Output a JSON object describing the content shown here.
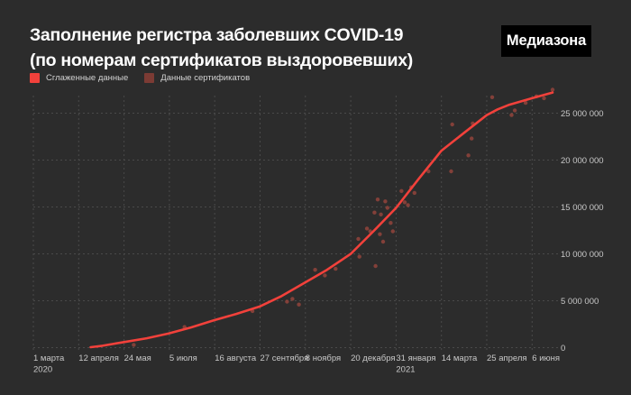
{
  "header": {
    "title_line1": "Заполнение регистра заболевших COVID-19",
    "title_line2": "(по номерам сертификатов выздоровевших)",
    "logo": "Медиазона"
  },
  "legend": [
    {
      "label": "Сглаженные данные",
      "color": "#f2413b"
    },
    {
      "label": "Данные сертификатов",
      "color": "#7c3b34"
    }
  ],
  "colors": {
    "background": "#2c2c2c",
    "accent_red": "#f2413b",
    "scatter_red": "#93443c",
    "gridline": "#4a4a4a",
    "logo_background": "#000000",
    "text_primary": "#ffffff",
    "text_secondary": "#c8c8c8"
  },
  "chart_data": {
    "type": "line+scatter",
    "title": "Заполнение регистра заболевших COVID-19 (по номерам сертификатов выздоровевших)",
    "grid": true,
    "legend_position": "top-left",
    "x_axis": {
      "unit": "days since 2020-03-01",
      "tick_interval_days": 42,
      "range_days": [
        0,
        487
      ],
      "ticks": [
        {
          "t": 0,
          "label": "1 марта",
          "label2": "2020"
        },
        {
          "t": 42,
          "label": "12 апреля"
        },
        {
          "t": 84,
          "label": "24 мая"
        },
        {
          "t": 126,
          "label": "5 июля"
        },
        {
          "t": 168,
          "label": "16 августа"
        },
        {
          "t": 210,
          "label": "27 сентября"
        },
        {
          "t": 252,
          "label": "8 ноября"
        },
        {
          "t": 294,
          "label": "20 декабря"
        },
        {
          "t": 336,
          "label": "31 января",
          "label2": "2021"
        },
        {
          "t": 378,
          "label": "14 марта"
        },
        {
          "t": 420,
          "label": "25 апреля"
        },
        {
          "t": 462,
          "label": "6 июня"
        }
      ]
    },
    "y_axis": {
      "range": [
        0,
        28000000
      ],
      "tick_interval": 5000000,
      "ticks": [
        {
          "v": 0,
          "label": "0"
        },
        {
          "v": 5000000,
          "label": "5 000 000"
        },
        {
          "v": 10000000,
          "label": "10 000 000"
        },
        {
          "v": 15000000,
          "label": "15 000 000"
        },
        {
          "v": 20000000,
          "label": "20 000 000"
        },
        {
          "v": 25000000,
          "label": "25 000 000"
        }
      ]
    },
    "series": [
      {
        "name": "Сглаженные данные",
        "type": "line",
        "color": "#f2413b",
        "points": [
          [
            53,
            50000
          ],
          [
            64,
            200000
          ],
          [
            84,
            600000
          ],
          [
            105,
            1000000
          ],
          [
            125,
            1500000
          ],
          [
            146,
            2150000
          ],
          [
            167,
            2900000
          ],
          [
            188,
            3600000
          ],
          [
            210,
            4400000
          ],
          [
            230,
            5500000
          ],
          [
            251,
            6900000
          ],
          [
            272,
            8300000
          ],
          [
            294,
            10000000
          ],
          [
            315,
            12400000
          ],
          [
            336,
            14900000
          ],
          [
            357,
            18000000
          ],
          [
            378,
            21000000
          ],
          [
            399,
            22900000
          ],
          [
            420,
            24800000
          ],
          [
            430,
            25400000
          ],
          [
            441,
            25900000
          ],
          [
            462,
            26600000
          ],
          [
            481,
            27200000
          ]
        ]
      },
      {
        "name": "Данные сертификатов",
        "type": "scatter",
        "color": "#93443c",
        "points": [
          [
            93,
            300000
          ],
          [
            140,
            2200000
          ],
          [
            203,
            3900000
          ],
          [
            235,
            4900000
          ],
          [
            240,
            5200000
          ],
          [
            246,
            4600000
          ],
          [
            261,
            8300000
          ],
          [
            270,
            7700000
          ],
          [
            280,
            8400000
          ],
          [
            301,
            11600000
          ],
          [
            302,
            9700000
          ],
          [
            309,
            12700000
          ],
          [
            312,
            12400000
          ],
          [
            316,
            14400000
          ],
          [
            317,
            8700000
          ],
          [
            319,
            15800000
          ],
          [
            321,
            12100000
          ],
          [
            322,
            14200000
          ],
          [
            324,
            11300000
          ],
          [
            326,
            15600000
          ],
          [
            328,
            14900000
          ],
          [
            331,
            13300000
          ],
          [
            333,
            12400000
          ],
          [
            341,
            16700000
          ],
          [
            344,
            15500000
          ],
          [
            347,
            15200000
          ],
          [
            350,
            17100000
          ],
          [
            353,
            16500000
          ],
          [
            366,
            18800000
          ],
          [
            387,
            18800000
          ],
          [
            388,
            23800000
          ],
          [
            403,
            20500000
          ],
          [
            406,
            22300000
          ],
          [
            407,
            23900000
          ],
          [
            425,
            26700000
          ],
          [
            443,
            24800000
          ],
          [
            446,
            25300000
          ],
          [
            456,
            26100000
          ],
          [
            466,
            26800000
          ],
          [
            473,
            26600000
          ],
          [
            481,
            27500000
          ]
        ]
      }
    ]
  }
}
